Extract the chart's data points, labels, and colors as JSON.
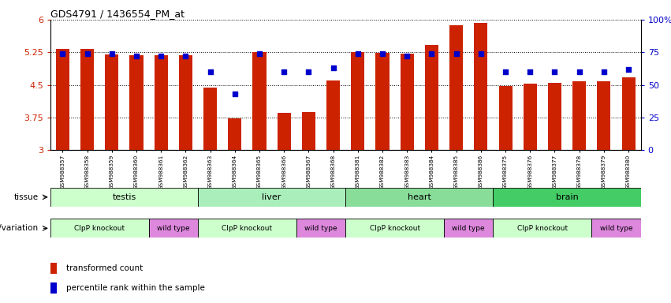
{
  "title": "GDS4791 / 1436554_PM_at",
  "samples": [
    "GSM988357",
    "GSM988358",
    "GSM988359",
    "GSM988360",
    "GSM988361",
    "GSM988362",
    "GSM988363",
    "GSM988364",
    "GSM988365",
    "GSM988366",
    "GSM988367",
    "GSM988368",
    "GSM988381",
    "GSM988382",
    "GSM988383",
    "GSM988384",
    "GSM988385",
    "GSM988386",
    "GSM988375",
    "GSM988376",
    "GSM988377",
    "GSM988378",
    "GSM988379",
    "GSM988380"
  ],
  "bar_values": [
    5.32,
    5.32,
    5.2,
    5.18,
    5.18,
    5.19,
    4.43,
    3.73,
    5.25,
    3.85,
    3.88,
    4.6,
    5.25,
    5.24,
    5.22,
    5.42,
    5.88,
    5.93,
    4.48,
    4.52,
    4.55,
    4.58,
    4.58,
    4.67
  ],
  "dot_values": [
    74,
    74,
    74,
    72,
    72,
    72,
    60,
    43,
    74,
    60,
    60,
    63,
    74,
    74,
    72,
    74,
    74,
    74,
    60,
    60,
    60,
    60,
    60,
    62
  ],
  "ylim_left": [
    3.0,
    6.0
  ],
  "ylim_right": [
    0,
    100
  ],
  "yticks_left": [
    3.0,
    3.75,
    4.5,
    5.25,
    6.0
  ],
  "ytick_labels_left": [
    "3",
    "3.75",
    "4.5",
    "5.25",
    "6"
  ],
  "yticks_right": [
    0,
    25,
    50,
    75,
    100
  ],
  "ytick_labels_right": [
    "0",
    "25",
    "50",
    "75",
    "100%"
  ],
  "bar_color": "#cc2200",
  "dot_color": "#0000cc",
  "tissue_colors": [
    "#ccffcc",
    "#aaeebb",
    "#88dd99",
    "#44cc66"
  ],
  "tissue_labels": [
    "testis",
    "liver",
    "heart",
    "brain"
  ],
  "tissue_ranges": [
    [
      0,
      6
    ],
    [
      6,
      12
    ],
    [
      12,
      18
    ],
    [
      18,
      24
    ]
  ],
  "geno_groups": [
    [
      0,
      4,
      "#ccffcc",
      "ClpP knockout"
    ],
    [
      4,
      6,
      "#dd88dd",
      "wild type"
    ],
    [
      6,
      10,
      "#ccffcc",
      "ClpP knockout"
    ],
    [
      10,
      12,
      "#dd88dd",
      "wild type"
    ],
    [
      12,
      16,
      "#ccffcc",
      "ClpP knockout"
    ],
    [
      16,
      18,
      "#dd88dd",
      "wild type"
    ],
    [
      18,
      22,
      "#ccffcc",
      "ClpP knockout"
    ],
    [
      22,
      24,
      "#dd88dd",
      "wild type"
    ]
  ],
  "background_color": "#ffffff"
}
